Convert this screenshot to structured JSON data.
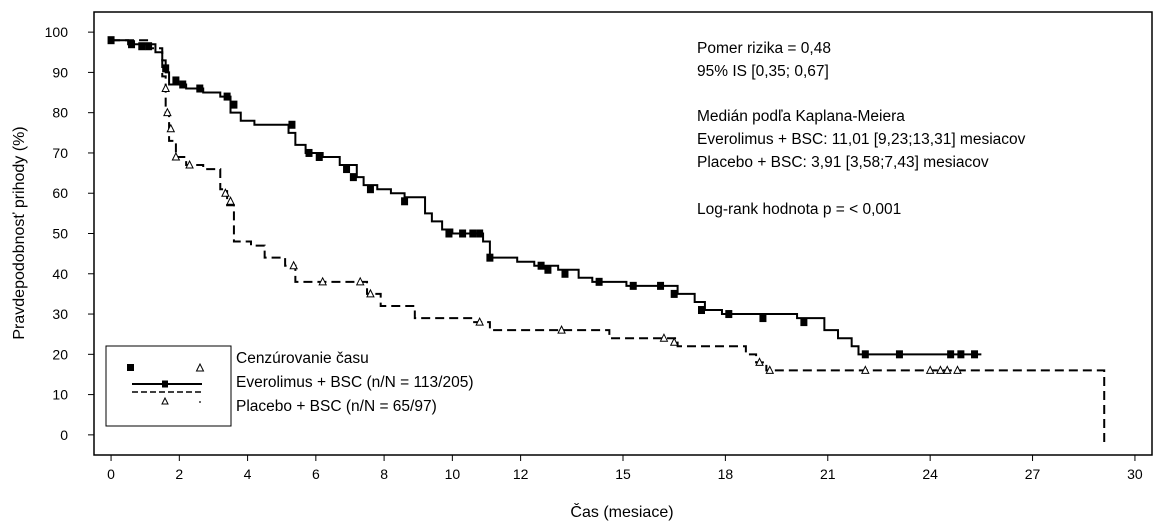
{
  "chart_data": {
    "type": "line",
    "xlabel": "Čas (mesiace)",
    "ylabel": "Pravdepodobnosť prihody (%)",
    "xlim": [
      -0.5,
      30.5
    ],
    "ylim": [
      -5,
      105
    ],
    "x_ticks": [
      0,
      2,
      4,
      6,
      8,
      10,
      12,
      15,
      18,
      21,
      24,
      27,
      30
    ],
    "y_ticks": [
      0,
      10,
      20,
      30,
      40,
      50,
      60,
      70,
      80,
      90,
      100
    ],
    "annotations": [
      "Pomer rizika = 0,48",
      "95% IS [0,35; 0,67]",
      "",
      "Medián podľa Kaplana-Meiera",
      "Everolimus + BSC: 11,01 [9,23;13,31] mesiacov",
      "Placebo + BSC: 3,91 [3,58;7,43] mesiacov",
      "",
      "Log-rank hodnota p = < 0,001"
    ],
    "legend": {
      "position": "bottom-left",
      "title": "Cenzúrovanie času",
      "entries": [
        "Everolimus + BSC (n/N = 113/205)",
        "Placebo + BSC (n/N = 65/97)"
      ]
    },
    "series": [
      {
        "style": "solid",
        "color": "#000000",
        "marker": "square",
        "steps": [
          [
            0,
            98
          ],
          [
            0.5,
            97
          ],
          [
            1.3,
            95
          ],
          [
            1.5,
            93
          ],
          [
            1.6,
            90
          ],
          [
            1.7,
            87
          ],
          [
            2.2,
            86
          ],
          [
            2.7,
            85
          ],
          [
            3.2,
            84
          ],
          [
            3.5,
            80
          ],
          [
            3.8,
            78
          ],
          [
            4.2,
            77
          ],
          [
            5.2,
            75
          ],
          [
            5.4,
            72
          ],
          [
            5.7,
            70
          ],
          [
            6.2,
            69
          ],
          [
            6.7,
            67
          ],
          [
            7.2,
            64
          ],
          [
            7.4,
            62
          ],
          [
            7.8,
            61
          ],
          [
            8.2,
            60
          ],
          [
            8.6,
            59
          ],
          [
            9.2,
            55
          ],
          [
            9.4,
            53
          ],
          [
            9.7,
            51
          ],
          [
            10.0,
            50
          ],
          [
            10.9,
            48
          ],
          [
            11.1,
            44
          ],
          [
            11.9,
            43
          ],
          [
            12.4,
            42
          ],
          [
            13.1,
            41
          ],
          [
            13.7,
            39
          ],
          [
            14.1,
            38
          ],
          [
            15.1,
            37
          ],
          [
            16.6,
            35
          ],
          [
            17.1,
            33
          ],
          [
            17.4,
            31
          ],
          [
            17.9,
            30
          ],
          [
            20.1,
            29
          ],
          [
            20.9,
            26
          ],
          [
            21.3,
            24
          ],
          [
            21.7,
            22
          ],
          [
            21.9,
            20
          ],
          [
            25.5,
            20
          ]
        ],
        "censored": [
          [
            0,
            98
          ],
          [
            0.6,
            97
          ],
          [
            0.9,
            96.5
          ],
          [
            1.1,
            96.5
          ],
          [
            1.6,
            91
          ],
          [
            1.9,
            88
          ],
          [
            2.1,
            87
          ],
          [
            2.6,
            86
          ],
          [
            3.4,
            84
          ],
          [
            3.6,
            82
          ],
          [
            5.3,
            77
          ],
          [
            5.8,
            70
          ],
          [
            6.1,
            69
          ],
          [
            6.9,
            66
          ],
          [
            7.1,
            64
          ],
          [
            7.6,
            61
          ],
          [
            8.6,
            58
          ],
          [
            9.9,
            50
          ],
          [
            10.3,
            50
          ],
          [
            10.6,
            50
          ],
          [
            10.8,
            50
          ],
          [
            11.1,
            44
          ],
          [
            12.6,
            42
          ],
          [
            12.8,
            41
          ],
          [
            13.3,
            40
          ],
          [
            14.3,
            38
          ],
          [
            15.3,
            37
          ],
          [
            16.1,
            37
          ],
          [
            16.5,
            35
          ],
          [
            17.3,
            31
          ],
          [
            18.1,
            30
          ],
          [
            19.1,
            29
          ],
          [
            20.3,
            28
          ],
          [
            22.1,
            20
          ],
          [
            23.1,
            20
          ],
          [
            24.6,
            20
          ],
          [
            24.9,
            20
          ],
          [
            25.3,
            20
          ]
        ]
      },
      {
        "style": "dashed",
        "color": "#000000",
        "marker": "triangle",
        "steps": [
          [
            0,
            98
          ],
          [
            1.1,
            96
          ],
          [
            1.5,
            89
          ],
          [
            1.6,
            80
          ],
          [
            1.7,
            73
          ],
          [
            1.9,
            69
          ],
          [
            2.2,
            67
          ],
          [
            2.7,
            66
          ],
          [
            3.2,
            61
          ],
          [
            3.4,
            57
          ],
          [
            3.6,
            48
          ],
          [
            4.1,
            47
          ],
          [
            4.5,
            44
          ],
          [
            5.1,
            42
          ],
          [
            5.4,
            38
          ],
          [
            7.5,
            35
          ],
          [
            7.9,
            32
          ],
          [
            8.9,
            29
          ],
          [
            10.6,
            28
          ],
          [
            11.1,
            26
          ],
          [
            13.6,
            26
          ],
          [
            14.6,
            24
          ],
          [
            16.6,
            22
          ],
          [
            18.6,
            20
          ],
          [
            18.9,
            18
          ],
          [
            19.2,
            16
          ],
          [
            29.1,
            16
          ],
          [
            29.1,
            -3
          ]
        ],
        "censored": [
          [
            1.6,
            86
          ],
          [
            1.65,
            80
          ],
          [
            1.75,
            76
          ],
          [
            1.9,
            69
          ],
          [
            2.3,
            67
          ],
          [
            3.35,
            60
          ],
          [
            3.5,
            58
          ],
          [
            5.35,
            42
          ],
          [
            6.2,
            38
          ],
          [
            7.3,
            38
          ],
          [
            7.6,
            35
          ],
          [
            10.8,
            28
          ],
          [
            13.2,
            26
          ],
          [
            16.2,
            24
          ],
          [
            16.5,
            23
          ],
          [
            19.0,
            18
          ],
          [
            19.3,
            16
          ],
          [
            22.1,
            16
          ],
          [
            24.0,
            16
          ],
          [
            24.3,
            16
          ],
          [
            24.5,
            16
          ],
          [
            24.8,
            16
          ]
        ]
      }
    ]
  }
}
